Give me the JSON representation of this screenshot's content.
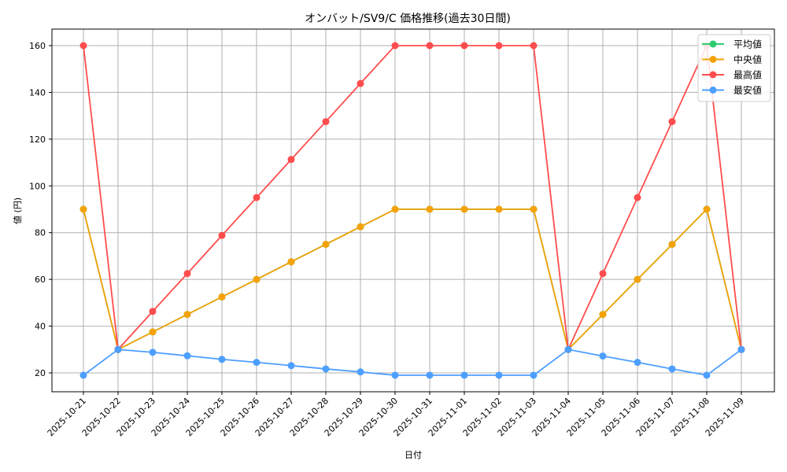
{
  "chart_data": {
    "type": "line",
    "title": "オンバット/SV9/C 価格推移(過去30日間)",
    "xlabel": "日付",
    "ylabel": "値 (円)",
    "ylim": [
      12.5,
      167
    ],
    "yticks": [
      20,
      40,
      60,
      80,
      100,
      120,
      140,
      160
    ],
    "grid": true,
    "legend_position": "upper right",
    "categories": [
      "2025-10-21",
      "2025-10-22",
      "2025-10-23",
      "2025-10-24",
      "2025-10-25",
      "2025-10-26",
      "2025-10-27",
      "2025-10-28",
      "2025-10-29",
      "2025-10-30",
      "2025-10-31",
      "2025-11-01",
      "2025-11-02",
      "2025-11-03",
      "2025-11-04",
      "2025-11-05",
      "2025-11-06",
      "2025-11-07",
      "2025-11-08",
      "2025-11-09"
    ],
    "series": [
      {
        "name": "平均値",
        "color": "#2ecc71",
        "values": [
          90,
          30,
          37.5,
          45,
          52.5,
          60,
          67.5,
          75,
          82.5,
          90,
          90,
          90,
          90,
          90,
          30,
          45,
          60,
          75,
          90,
          30
        ]
      },
      {
        "name": "中央値",
        "color": "#f5a20a",
        "values": [
          90,
          30,
          37.5,
          45,
          52.5,
          60,
          67.5,
          75,
          82.5,
          90,
          90,
          90,
          90,
          90,
          30,
          45,
          60,
          75,
          90,
          30
        ]
      },
      {
        "name": "最高値",
        "color": "#ff4d4d",
        "values": [
          160,
          30,
          46.3,
          62.5,
          78.8,
          95,
          111.3,
          127.5,
          143.8,
          160,
          160,
          160,
          160,
          160,
          30,
          62.5,
          95,
          127.5,
          160,
          30
        ]
      },
      {
        "name": "最安値",
        "color": "#4d9fff",
        "values": [
          19,
          30,
          28.8,
          27.3,
          25.8,
          24.5,
          23.1,
          21.7,
          20.4,
          19,
          19,
          19,
          19,
          19,
          30,
          27.2,
          24.5,
          21.7,
          19,
          30
        ]
      }
    ]
  }
}
